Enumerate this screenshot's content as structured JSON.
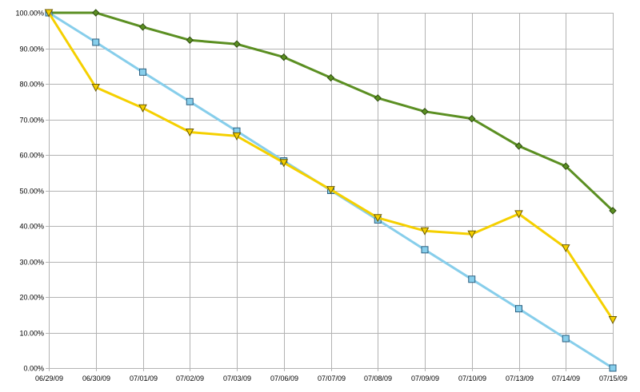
{
  "chart_data": {
    "type": "line",
    "title": "",
    "xlabel": "",
    "ylabel": "",
    "ylim": [
      0,
      100
    ],
    "yticks": [
      0,
      10,
      20,
      30,
      40,
      50,
      60,
      70,
      80,
      90,
      100
    ],
    "ytick_labels": [
      "0.00%",
      "10.00%",
      "20.00%",
      "30.00%",
      "40.00%",
      "50.00%",
      "60.00%",
      "70.00%",
      "80.00%",
      "90.00%",
      "100.00%"
    ],
    "categories": [
      "06/29/09",
      "06/30/09",
      "07/01/09",
      "07/02/09",
      "07/03/09",
      "07/06/09",
      "07/07/09",
      "07/08/09",
      "07/09/09",
      "07/10/09",
      "07/13/09",
      "07/14/09",
      "07/15/09"
    ],
    "grid": true,
    "legend": "none",
    "series": [
      {
        "color": "#5b8f22",
        "marker": "diamond",
        "values": [
          100,
          100,
          96,
          92.3,
          91.2,
          87.5,
          81.7,
          76,
          72.2,
          70.2,
          62.5,
          56.8,
          44.3
        ]
      },
      {
        "color": "#87ceeb",
        "marker": "square",
        "values": [
          100,
          91.7,
          83.3,
          75,
          66.7,
          58.3,
          50,
          41.7,
          33.3,
          25,
          16.7,
          8.3,
          0
        ]
      },
      {
        "color": "#f5d000",
        "marker": "triangle-down",
        "values": [
          100,
          79,
          73.2,
          66.4,
          65.3,
          57.8,
          50.2,
          42.3,
          38.6,
          37.7,
          43.4,
          33.8,
          13.6
        ]
      }
    ]
  }
}
